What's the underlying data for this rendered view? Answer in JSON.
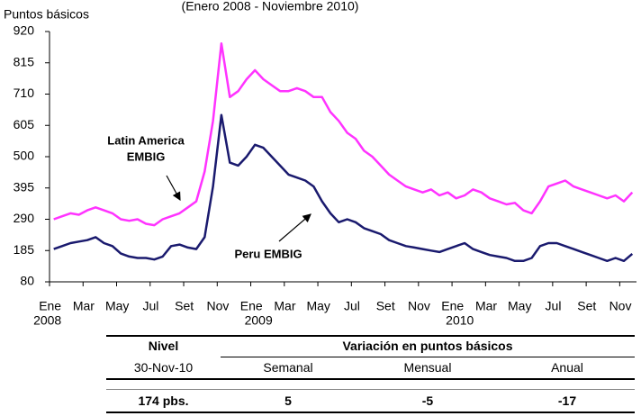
{
  "chart_data": {
    "type": "line",
    "title": "(Enero 2008 - Noviembre 2010)",
    "y_label": "Puntos básicos",
    "categories": [
      "Ene",
      null,
      null,
      null,
      "Mar",
      null,
      null,
      null,
      "May",
      null,
      null,
      null,
      "Jul",
      null,
      null,
      null,
      "Set",
      null,
      null,
      null,
      "Nov",
      null,
      null,
      null,
      "Ene",
      null,
      null,
      null,
      "Mar",
      null,
      null,
      null,
      "May",
      null,
      null,
      null,
      "Jul",
      null,
      null,
      null,
      "Set",
      null,
      null,
      null,
      "Nov",
      null,
      null,
      null,
      "Ene",
      null,
      null,
      null,
      "Mar",
      null,
      null,
      null,
      "May",
      null,
      null,
      null,
      "Jul",
      null,
      null,
      null,
      "Set",
      null,
      null,
      null,
      "Nov",
      null
    ],
    "years": [
      "2008",
      "2009",
      "2010"
    ],
    "ylim": [
      80,
      920
    ],
    "yticks": [
      80,
      185,
      290,
      395,
      500,
      605,
      710,
      815,
      920
    ],
    "series": [
      {
        "name": "Latin America EMBIG",
        "color": "#ff33ff",
        "values": [
          290,
          300,
          310,
          305,
          320,
          330,
          320,
          310,
          290,
          285,
          290,
          275,
          270,
          290,
          300,
          310,
          330,
          350,
          450,
          620,
          880,
          700,
          720,
          760,
          790,
          760,
          740,
          720,
          720,
          730,
          720,
          700,
          700,
          650,
          620,
          580,
          560,
          520,
          500,
          470,
          440,
          420,
          400,
          390,
          380,
          390,
          370,
          380,
          360,
          370,
          390,
          380,
          360,
          350,
          340,
          345,
          320,
          310,
          350,
          400,
          410,
          420,
          400,
          390,
          380,
          370,
          360,
          370,
          350,
          380
        ]
      },
      {
        "name": "Peru EMBIG",
        "color": "#1a1a6e",
        "values": [
          190,
          200,
          210,
          215,
          220,
          230,
          210,
          200,
          175,
          165,
          160,
          160,
          155,
          165,
          200,
          205,
          195,
          190,
          230,
          400,
          640,
          480,
          470,
          500,
          540,
          530,
          500,
          470,
          440,
          430,
          420,
          400,
          350,
          310,
          280,
          290,
          280,
          260,
          250,
          240,
          220,
          210,
          200,
          195,
          190,
          185,
          180,
          190,
          200,
          210,
          190,
          180,
          170,
          165,
          160,
          150,
          150,
          160,
          200,
          210,
          210,
          200,
          190,
          180,
          170,
          160,
          150,
          160,
          150,
          174
        ]
      }
    ],
    "annotations": [
      {
        "lines": [
          "Latin America",
          "EMBIG"
        ]
      },
      {
        "lines": [
          "Peru  EMBIG"
        ]
      }
    ]
  },
  "table": {
    "header": [
      "Nivel",
      "Variación en puntos básicos"
    ],
    "subheader": [
      "30-Nov-10",
      "Semanal",
      "Mensual",
      "Anual"
    ],
    "row": [
      "174 pbs.",
      "5",
      "-5",
      "-17"
    ]
  }
}
